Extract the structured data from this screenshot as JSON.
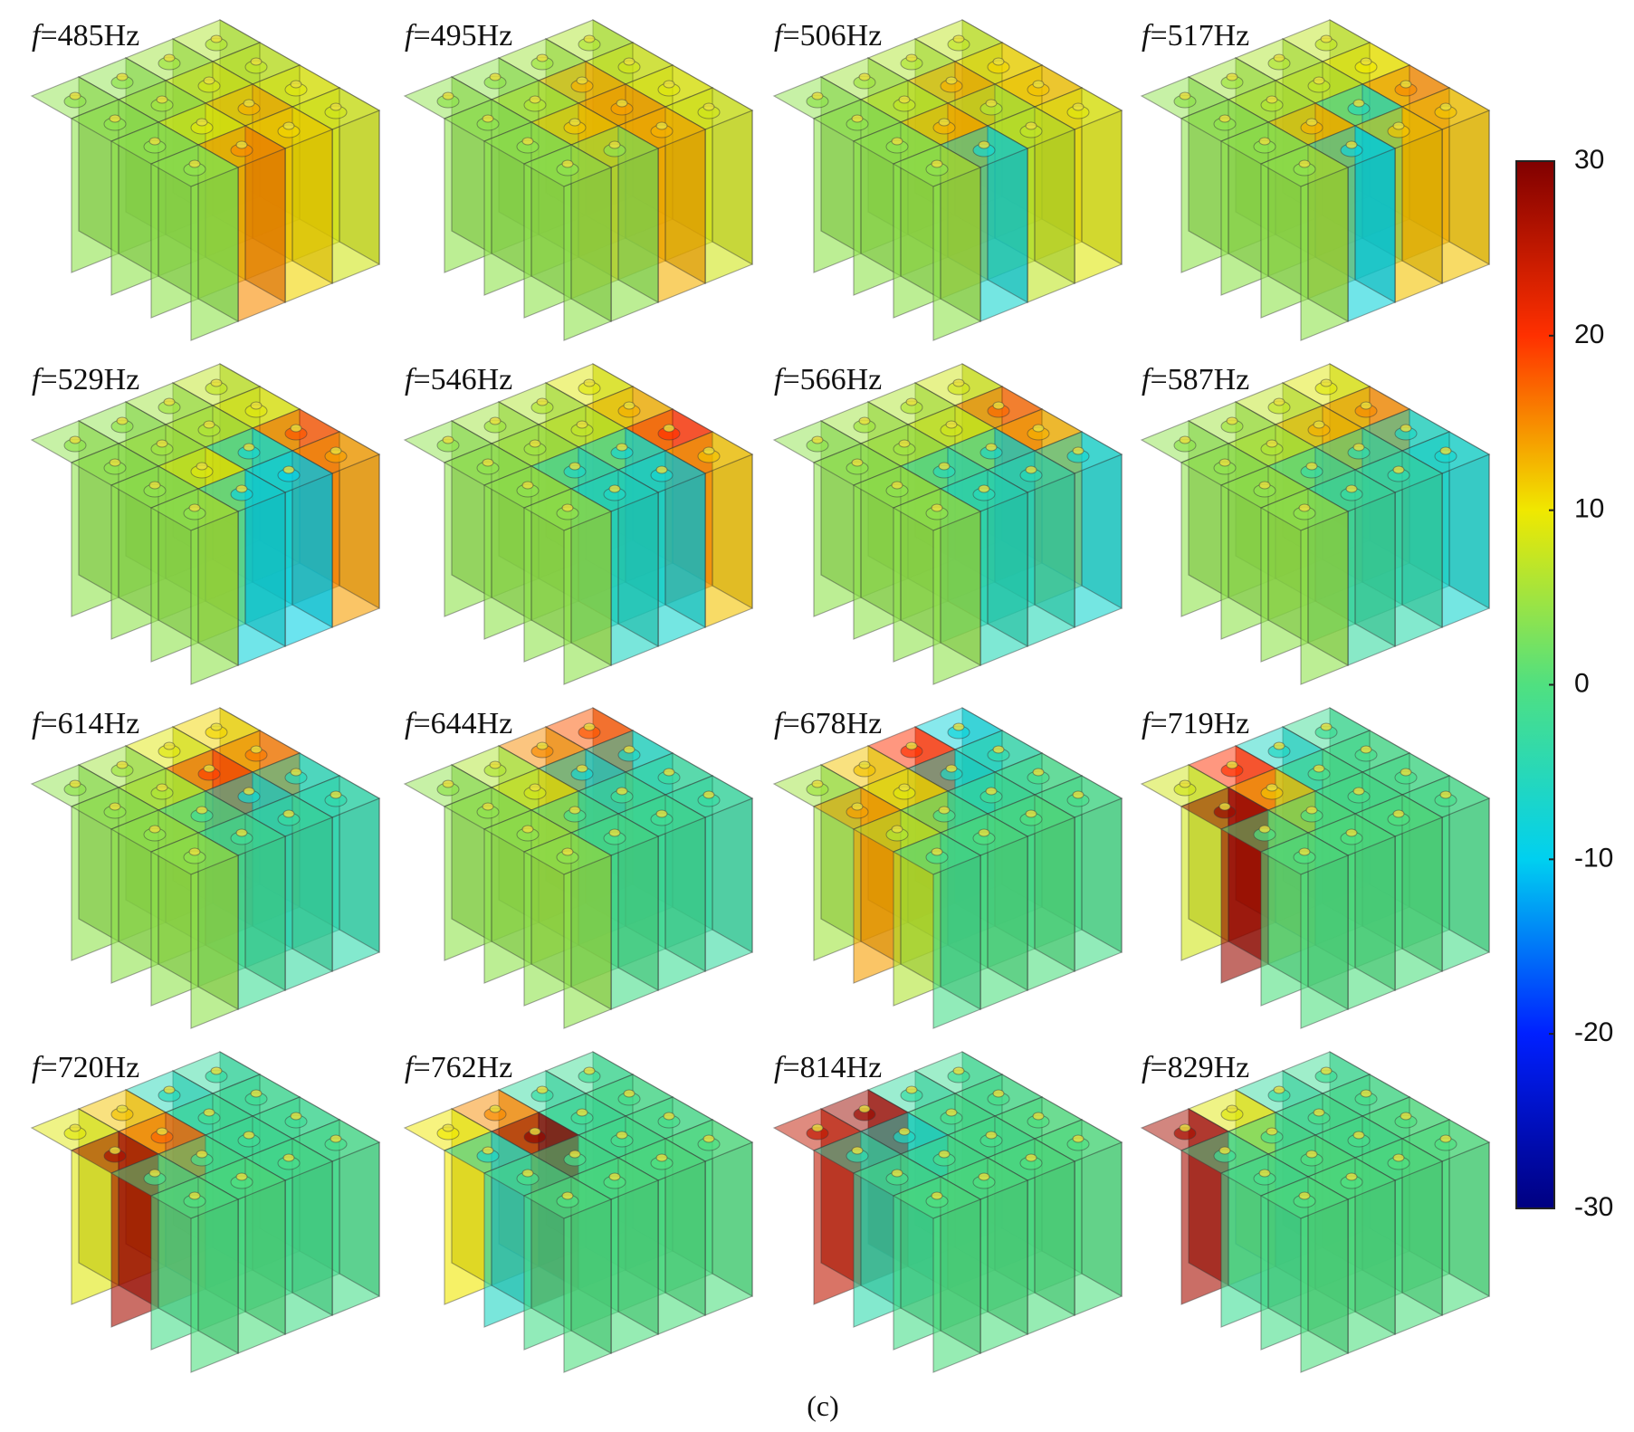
{
  "panels": [
    {
      "variable": "f",
      "label": "=485Hz",
      "cells": [
        [
          4,
          4,
          5,
          6
        ],
        [
          4,
          5,
          8,
          7
        ],
        [
          4,
          9,
          13,
          9
        ],
        [
          4,
          15,
          11,
          8
        ]
      ]
    },
    {
      "variable": "f",
      "label": "=495Hz",
      "cells": [
        [
          4,
          4,
          5,
          6
        ],
        [
          4,
          6,
          13,
          8
        ],
        [
          4,
          12,
          14,
          9
        ],
        [
          4,
          4,
          13,
          8
        ]
      ]
    },
    {
      "variable": "f",
      "label": "=506Hz",
      "cells": [
        [
          4,
          5,
          6,
          7
        ],
        [
          4,
          7,
          13,
          11
        ],
        [
          4,
          13,
          6,
          12
        ],
        [
          4,
          -7,
          7,
          9
        ]
      ]
    },
    {
      "variable": "f",
      "label": "=517Hz",
      "cells": [
        [
          4,
          5,
          6,
          7
        ],
        [
          4,
          6,
          7,
          10
        ],
        [
          4,
          13,
          -5,
          15
        ],
        [
          4,
          -8,
          12,
          12
        ]
      ]
    },
    {
      "variable": "f",
      "label": "=529Hz",
      "cells": [
        [
          4,
          4,
          5,
          7
        ],
        [
          4,
          5,
          6,
          9
        ],
        [
          4,
          9,
          -7,
          18
        ],
        [
          4,
          -8,
          -9,
          14
        ]
      ]
    },
    {
      "variable": "f",
      "label": "=546Hz",
      "cells": [
        [
          4,
          5,
          6,
          9
        ],
        [
          4,
          5,
          7,
          13
        ],
        [
          4,
          -6,
          -7,
          20
        ],
        [
          4,
          -6,
          -7,
          12
        ]
      ]
    },
    {
      "variable": "f",
      "label": "=566Hz",
      "cells": [
        [
          4,
          5,
          6,
          8
        ],
        [
          4,
          5,
          8,
          17
        ],
        [
          4,
          -5,
          -6,
          13
        ],
        [
          4,
          -5,
          -5,
          -7
        ]
      ]
    },
    {
      "variable": "f",
      "label": "=587Hz",
      "cells": [
        [
          4,
          5,
          7,
          9
        ],
        [
          4,
          6,
          13,
          15
        ],
        [
          4,
          -3,
          -4,
          -6
        ],
        [
          4,
          -3,
          -4,
          -7
        ]
      ]
    },
    {
      "variable": "f",
      "label": "=614Hz",
      "cells": [
        [
          4,
          5,
          9,
          11
        ],
        [
          4,
          6,
          19,
          16
        ],
        [
          4,
          -2,
          -7,
          -5
        ],
        [
          4,
          -2,
          -3,
          -4
        ]
      ]
    },
    {
      "variable": "f",
      "label": "=644Hz",
      "cells": [
        [
          4,
          6,
          15,
          18
        ],
        [
          4,
          8,
          -7,
          -6
        ],
        [
          4,
          -1,
          -2,
          -3
        ],
        [
          4,
          -1,
          -2,
          -3
        ]
      ]
    },
    {
      "variable": "f",
      "label": "=678Hz",
      "cells": [
        [
          5,
          12,
          20,
          -8
        ],
        [
          14,
          9,
          -6,
          -4
        ],
        [
          6,
          -1,
          -2,
          -1
        ],
        [
          -1,
          0,
          0,
          -1
        ]
      ]
    },
    {
      "variable": "f",
      "label": "=719Hz",
      "cells": [
        [
          8,
          20,
          -6,
          -2
        ],
        [
          28,
          12,
          -1,
          -1
        ],
        [
          0,
          0,
          -1,
          -1
        ],
        [
          0,
          0,
          0,
          -1
        ]
      ]
    },
    {
      "variable": "f",
      "label": "=720Hz",
      "cells": [
        [
          9,
          12,
          -5,
          -3
        ],
        [
          27,
          17,
          -2,
          -2
        ],
        [
          -1,
          -1,
          -2,
          -2
        ],
        [
          0,
          0,
          -1,
          -1
        ]
      ]
    },
    {
      "variable": "f",
      "label": "=762Hz",
      "cells": [
        [
          10,
          15,
          -3,
          -2
        ],
        [
          -6,
          29,
          -2,
          -1
        ],
        [
          -1,
          -1,
          -1,
          -1
        ],
        [
          0,
          0,
          0,
          0
        ]
      ]
    },
    {
      "variable": "f",
      "label": "=814Hz",
      "cells": [
        [
          25,
          28,
          -3,
          -2
        ],
        [
          -4,
          -6,
          -1,
          -1
        ],
        [
          -1,
          -1,
          -1,
          0
        ],
        [
          0,
          0,
          0,
          0
        ]
      ]
    },
    {
      "variable": "f",
      "label": "=829Hz",
      "cells": [
        [
          27,
          9,
          -3,
          -2
        ],
        [
          -2,
          -1,
          -1,
          -1
        ],
        [
          -1,
          0,
          -1,
          0
        ],
        [
          0,
          0,
          0,
          0
        ]
      ]
    }
  ],
  "colorbar": {
    "lim": [
      -30,
      30
    ],
    "ticks": [
      30,
      20,
      10,
      0,
      -10,
      -20,
      -30
    ],
    "colormap": [
      "#000080",
      "#0020ff",
      "#00d0f0",
      "#50e080",
      "#f0e800",
      "#ff3000",
      "#800000"
    ]
  },
  "caption": "(c)"
}
